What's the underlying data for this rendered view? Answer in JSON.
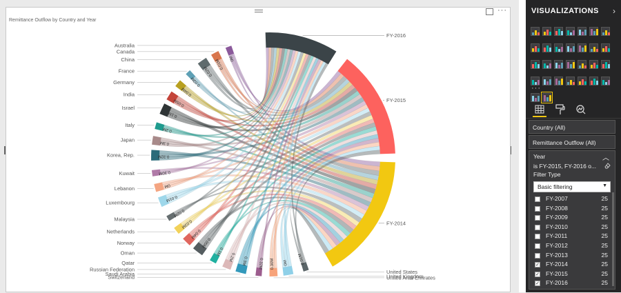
{
  "visual": {
    "title": "Remittance Outflow by Country and Year",
    "more_label": "···"
  },
  "chart_data": {
    "type": "chord",
    "title": "Remittance Outflow by Country and Year",
    "years": [
      {
        "name": "FY-2016",
        "color": "#3b4448"
      },
      {
        "name": "FY-2015",
        "color": "#fd625e"
      },
      {
        "name": "FY-2014",
        "color": "#f2c811"
      }
    ],
    "countries": [
      {
        "name": "Australia",
        "color": "#8b5a9b"
      },
      {
        "name": "Canada",
        "color": "#d9764d"
      },
      {
        "name": "China",
        "color": "#5f6b6d"
      },
      {
        "name": "France",
        "color": "#5ea0b5"
      },
      {
        "name": "Germany",
        "color": "#b8a020"
      },
      {
        "name": "India",
        "color": "#c4443a"
      },
      {
        "name": "Israel",
        "color": "#2f3536"
      },
      {
        "name": "Italy",
        "color": "#1f9b8e"
      },
      {
        "name": "Japan",
        "color": "#a88a8a"
      },
      {
        "name": "Korea, Rep.",
        "color": "#2b6b7a"
      },
      {
        "name": "Kuwait",
        "color": "#b07aa8"
      },
      {
        "name": "Lebanon",
        "color": "#f4a582"
      },
      {
        "name": "Luxembourg",
        "color": "#9ed7ea"
      },
      {
        "name": "Malaysia",
        "color": "#666e70"
      },
      {
        "name": "Netherlands",
        "color": "#f2d25a"
      },
      {
        "name": "Norway",
        "color": "#e0665e"
      },
      {
        "name": "Oman",
        "color": "#555d60"
      },
      {
        "name": "Qatar",
        "color": "#20b0a0"
      },
      {
        "name": "Russian Federation",
        "color": "#dcb8b8"
      },
      {
        "name": "Saudi Arabia",
        "color": "#3399bb"
      },
      {
        "name": "Switzerland",
        "color": "#9c5d8e"
      },
      {
        "name": "United Arab Emirates",
        "color": "#f7a37a"
      },
      {
        "name": "United Kingdom",
        "color": "#8fd0e8"
      },
      {
        "name": "United States",
        "color": "#5b6568"
      }
    ],
    "tick_labels": [
      "0M",
      "0.01M",
      "0.02M",
      "0.03M",
      "0.04M",
      "0.05M",
      "0.1M",
      "0.2M",
      "0.3M",
      "0.32M",
      "0.30M"
    ]
  },
  "panel": {
    "header": "VISUALIZATIONS",
    "viz_more": "···",
    "filters": [
      {
        "label": "Country (All)"
      },
      {
        "label": "Remittance Outflow (All)"
      }
    ],
    "year_filter": {
      "title": "Year",
      "summary": "is FY-2015, FY-2016 o...",
      "filter_type_label": "Filter Type",
      "filter_type_value": "Basic filtering",
      "items": [
        {
          "label": "FY-2007",
          "count": "25",
          "checked": false
        },
        {
          "label": "FY-2008",
          "count": "25",
          "checked": false
        },
        {
          "label": "FY-2009",
          "count": "25",
          "checked": false
        },
        {
          "label": "FY-2010",
          "count": "25",
          "checked": false
        },
        {
          "label": "FY-2011",
          "count": "25",
          "checked": false
        },
        {
          "label": "FY-2012",
          "count": "25",
          "checked": false
        },
        {
          "label": "FY-2013",
          "count": "25",
          "checked": false
        },
        {
          "label": "FY-2014",
          "count": "25",
          "checked": true
        },
        {
          "label": "FY-2015",
          "count": "25",
          "checked": true
        },
        {
          "label": "FY-2016",
          "count": "25",
          "checked": true
        }
      ]
    }
  }
}
